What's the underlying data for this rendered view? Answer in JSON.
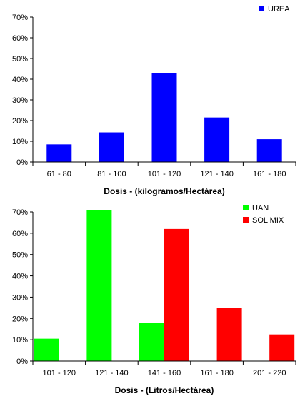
{
  "chart_data": [
    {
      "type": "bar",
      "categories": [
        "61 - 80",
        "81 - 100",
        "101 - 120",
        "121 - 140",
        "161 - 180"
      ],
      "series": [
        {
          "name": "UREA",
          "values": [
            8.5,
            14.3,
            43,
            21.5,
            11
          ],
          "color": "#0000ff"
        }
      ],
      "xlabel": "Dosis - (kilogramos/Hectárea)",
      "ylabel": "",
      "ylim": [
        0,
        70
      ],
      "yticks": [
        "0%",
        "10%",
        "20%",
        "30%",
        "40%",
        "50%",
        "60%",
        "70%"
      ],
      "grid": false,
      "legend": "top-right"
    },
    {
      "type": "bar",
      "categories": [
        "101 - 120",
        "121 - 140",
        "141 - 160",
        "161 - 180",
        "201 - 220"
      ],
      "series": [
        {
          "name": "UAN",
          "values": [
            10.5,
            71,
            18,
            null,
            null
          ],
          "color": "#00ff00"
        },
        {
          "name": "SOL MIX",
          "values": [
            null,
            null,
            62,
            25,
            12.5
          ],
          "color": "#ff0000"
        }
      ],
      "xlabel": "Dosis - (Litros/Hectárea)",
      "ylabel": "",
      "ylim": [
        0,
        70
      ],
      "yticks": [
        "0%",
        "10%",
        "20%",
        "30%",
        "40%",
        "50%",
        "60%",
        "70%"
      ],
      "grid": false,
      "legend": "top-right"
    }
  ]
}
